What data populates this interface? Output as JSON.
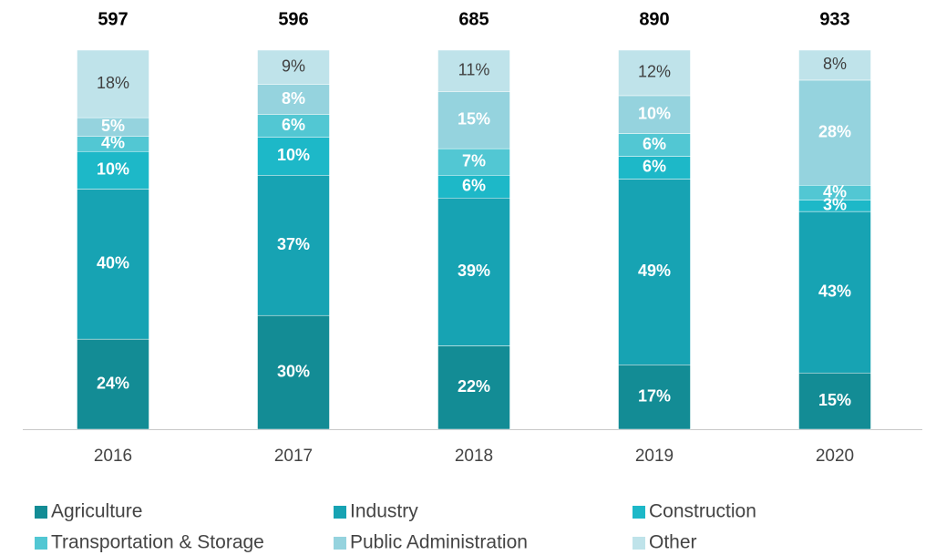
{
  "chart_data": {
    "type": "stacked_bar_100",
    "categories": [
      "2016",
      "2017",
      "2018",
      "2019",
      "2020"
    ],
    "totals": [
      597,
      596,
      685,
      890,
      933
    ],
    "series": [
      {
        "name": "Agriculture",
        "color": "#138c95",
        "label_color": "#ffffff",
        "values": [
          24,
          30,
          22,
          17,
          15
        ],
        "value_labels": [
          "24%",
          "30%",
          "22%",
          "17%",
          "15%"
        ]
      },
      {
        "name": "Industry",
        "color": "#17a3b3",
        "label_color": "#ffffff",
        "values": [
          40,
          37,
          39,
          49,
          43
        ],
        "value_labels": [
          "40%",
          "37%",
          "39%",
          "49%",
          "43%"
        ]
      },
      {
        "name": "Construction",
        "color": "#1db8c8",
        "label_color": "#ffffff",
        "values": [
          10,
          10,
          6,
          6,
          3
        ],
        "value_labels": [
          "10%",
          "10%",
          "6%",
          "6%",
          "3%"
        ]
      },
      {
        "name": "Transportation & Storage",
        "color": "#52c7d3",
        "label_color": "#ffffff",
        "values": [
          4,
          6,
          7,
          6,
          4
        ],
        "value_labels": [
          "4%",
          "6%",
          "7%",
          "6%",
          "4%"
        ]
      },
      {
        "name": "Public Administration",
        "color": "#95d3de",
        "label_color": "#ffffff",
        "values": [
          5,
          8,
          15,
          10,
          28
        ],
        "value_labels": [
          "5%",
          "8%",
          "15%",
          "10%",
          "28%"
        ]
      },
      {
        "name": "Other",
        "color": "#bfe3ea",
        "label_color": "#404040",
        "values": [
          18,
          9,
          11,
          12,
          8
        ],
        "value_labels": [
          "18%",
          "9%",
          "11%",
          "12%",
          "8%"
        ]
      }
    ]
  }
}
